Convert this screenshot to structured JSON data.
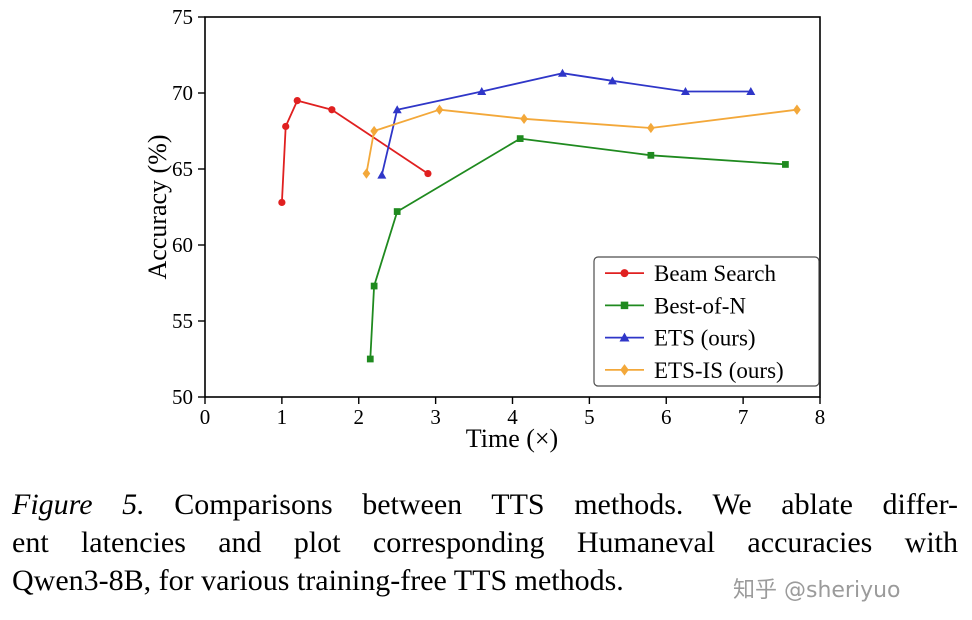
{
  "colors": {
    "beam_search": "#e02020",
    "best_of_n": "#1f8a1f",
    "ets": "#2f36c8",
    "ets_is": "#f3a83a",
    "axis": "#000000",
    "legend_border": "#4d4d4d",
    "watermark": "#9b9b9b"
  },
  "chart_data": {
    "type": "line",
    "title": "",
    "xlabel": "Time (×)",
    "ylabel": "Accuracy (%)",
    "xlim": [
      0,
      8
    ],
    "ylim": [
      50,
      75
    ],
    "xticks": [
      0,
      1,
      2,
      3,
      4,
      5,
      6,
      7,
      8
    ],
    "yticks": [
      50,
      55,
      60,
      65,
      70,
      75
    ],
    "grid": false,
    "legend_position": "lower right",
    "series": [
      {
        "name": "Beam Search",
        "color": "#e02020",
        "marker": "circle",
        "points": [
          [
            1.0,
            62.8
          ],
          [
            1.05,
            67.8
          ],
          [
            1.2,
            69.5
          ],
          [
            1.65,
            68.9
          ],
          [
            2.9,
            64.7
          ]
        ]
      },
      {
        "name": "Best-of-N",
        "color": "#1f8a1f",
        "marker": "square",
        "points": [
          [
            2.15,
            52.5
          ],
          [
            2.2,
            57.3
          ],
          [
            2.5,
            62.2
          ],
          [
            4.1,
            67.0
          ],
          [
            5.8,
            65.9
          ],
          [
            7.55,
            65.3
          ]
        ]
      },
      {
        "name": "ETS (ours)",
        "color": "#2f36c8",
        "marker": "triangle",
        "points": [
          [
            2.3,
            64.6
          ],
          [
            2.5,
            68.9
          ],
          [
            3.6,
            70.1
          ],
          [
            4.65,
            71.3
          ],
          [
            5.3,
            70.8
          ],
          [
            6.25,
            70.1
          ],
          [
            7.1,
            70.1
          ]
        ]
      },
      {
        "name": "ETS-IS (ours)",
        "color": "#f3a83a",
        "marker": "diamond",
        "points": [
          [
            2.1,
            64.7
          ],
          [
            2.2,
            67.5
          ],
          [
            3.05,
            68.9
          ],
          [
            4.15,
            68.3
          ],
          [
            5.8,
            67.7
          ],
          [
            7.7,
            68.9
          ]
        ]
      }
    ]
  },
  "caption": {
    "prefix": "Figure 5.",
    "line1_rest": "Comparisons between TTS methods. We ablate differ-",
    "line2": "ent latencies and plot corresponding Humaneval accuracies with",
    "line3": "Qwen3-8B, for various training-free TTS methods."
  },
  "watermark": {
    "text": "知乎 @sheriyuo"
  }
}
